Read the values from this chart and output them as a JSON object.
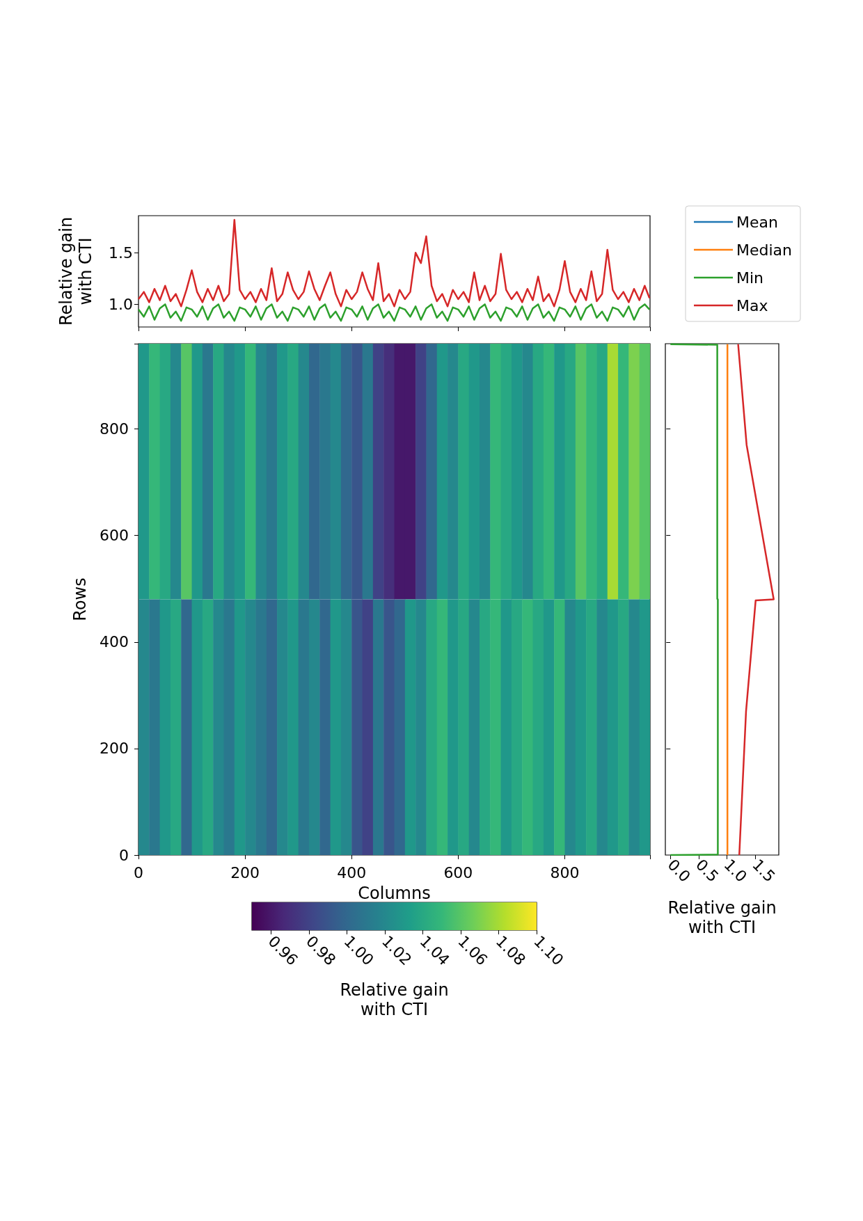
{
  "chart_data": [
    {
      "type": "line",
      "ylabel": "Relative gain\nwith CTI",
      "xlim": [
        0,
        960
      ],
      "xticks": [
        0,
        200,
        400,
        600,
        800
      ],
      "ylim": [
        0.78,
        1.86
      ],
      "yticks": [
        {
          "value": 1.0,
          "label": "1.0"
        },
        1.5
      ],
      "tick_labels": "y",
      "legend": "right",
      "x": [
        0,
        10,
        20,
        30,
        40,
        50,
        60,
        70,
        80,
        90,
        100,
        110,
        120,
        130,
        140,
        150,
        160,
        170,
        180,
        190,
        200,
        210,
        220,
        230,
        240,
        250,
        260,
        270,
        280,
        290,
        300,
        310,
        320,
        330,
        340,
        350,
        360,
        370,
        380,
        390,
        400,
        410,
        420,
        430,
        440,
        450,
        460,
        470,
        480,
        490,
        500,
        510,
        520,
        530,
        540,
        550,
        560,
        570,
        580,
        590,
        600,
        610,
        620,
        630,
        640,
        650,
        660,
        670,
        680,
        690,
        700,
        710,
        720,
        730,
        740,
        750,
        760,
        770,
        780,
        790,
        800,
        810,
        820,
        830,
        840,
        850,
        860,
        870,
        880,
        890,
        900,
        910,
        920,
        930,
        940,
        950,
        959
      ],
      "series": [
        {
          "name": "Mean",
          "color": "#1f77b4",
          "values": [
            null,
            null,
            null,
            null,
            null,
            null,
            null,
            null,
            null,
            null,
            null,
            null,
            null,
            null,
            null,
            null,
            null,
            null,
            null,
            null,
            null,
            null,
            null,
            null,
            null,
            null,
            null,
            null,
            null,
            null,
            null,
            null,
            null,
            null,
            null,
            null,
            null,
            null,
            null,
            null,
            null,
            null,
            null,
            null,
            null,
            null,
            null,
            null,
            null,
            null,
            null,
            null,
            null,
            null,
            null,
            null,
            null,
            null,
            null,
            null,
            null,
            null,
            null,
            null,
            null,
            null,
            null,
            null,
            null,
            null,
            null,
            null,
            null,
            null,
            null,
            null,
            null,
            null,
            null,
            null,
            null,
            null,
            null,
            null,
            null,
            null,
            null,
            null,
            null,
            null,
            null,
            null,
            null,
            null,
            null,
            null,
            null
          ]
        },
        {
          "name": "Median",
          "color": "#ff7f0e",
          "values": [
            null,
            null,
            null,
            null,
            null,
            null,
            null,
            null,
            null,
            null,
            null,
            null,
            null,
            null,
            null,
            null,
            null,
            null,
            null,
            null,
            null,
            null,
            null,
            null,
            null,
            null,
            null,
            null,
            null,
            null,
            null,
            null,
            null,
            null,
            null,
            null,
            null,
            null,
            null,
            null,
            null,
            null,
            null,
            null,
            null,
            null,
            null,
            null,
            null,
            null,
            null,
            null,
            null,
            null,
            null,
            null,
            null,
            null,
            null,
            null,
            null,
            null,
            null,
            null,
            null,
            null,
            null,
            null,
            null,
            null,
            null,
            null,
            null,
            null,
            null,
            null,
            null,
            null,
            null,
            null,
            null,
            null,
            null,
            null,
            null,
            null,
            null,
            null,
            null,
            null,
            null,
            null,
            null,
            null,
            null,
            null,
            null
          ]
        },
        {
          "name": "Min",
          "color": "#2ca02c",
          "values": [
            0.95,
            0.88,
            0.98,
            0.85,
            0.96,
            1.0,
            0.87,
            0.93,
            0.84,
            0.97,
            0.95,
            0.88,
            0.98,
            0.85,
            0.96,
            1.0,
            0.87,
            0.93,
            0.84,
            0.97,
            0.95,
            0.88,
            0.98,
            0.85,
            0.96,
            1.0,
            0.87,
            0.93,
            0.84,
            0.97,
            0.95,
            0.88,
            0.98,
            0.85,
            0.96,
            1.0,
            0.87,
            0.93,
            0.84,
            0.97,
            0.95,
            0.88,
            0.98,
            0.85,
            0.96,
            1.0,
            0.87,
            0.93,
            0.84,
            0.97,
            0.95,
            0.88,
            0.98,
            0.85,
            0.96,
            1.0,
            0.87,
            0.93,
            0.84,
            0.97,
            0.95,
            0.88,
            0.98,
            0.85,
            0.96,
            1.0,
            0.87,
            0.93,
            0.84,
            0.97,
            0.95,
            0.88,
            0.98,
            0.85,
            0.96,
            1.0,
            0.87,
            0.93,
            0.84,
            0.97,
            0.95,
            0.88,
            0.98,
            0.85,
            0.96,
            1.0,
            0.87,
            0.93,
            0.84,
            0.97,
            0.95,
            0.88,
            0.98,
            0.85,
            0.96,
            1.0,
            0.95
          ]
        },
        {
          "name": "Max",
          "color": "#d62728",
          "values": [
            1.05,
            1.12,
            1.02,
            1.15,
            1.04,
            1.18,
            1.03,
            1.1,
            0.98,
            1.14,
            1.33,
            1.12,
            1.02,
            1.15,
            1.04,
            1.18,
            1.03,
            1.1,
            1.82,
            1.14,
            1.05,
            1.12,
            1.02,
            1.15,
            1.04,
            1.35,
            1.03,
            1.1,
            1.31,
            1.14,
            1.05,
            1.12,
            1.32,
            1.15,
            1.04,
            1.18,
            1.31,
            1.1,
            0.98,
            1.14,
            1.05,
            1.12,
            1.31,
            1.15,
            1.04,
            1.4,
            1.03,
            1.1,
            0.98,
            1.14,
            1.05,
            1.12,
            1.5,
            1.4,
            1.66,
            1.18,
            1.03,
            1.1,
            0.98,
            1.14,
            1.05,
            1.12,
            1.02,
            1.31,
            1.04,
            1.18,
            1.03,
            1.1,
            1.49,
            1.14,
            1.05,
            1.12,
            1.02,
            1.15,
            1.04,
            1.27,
            1.03,
            1.1,
            0.98,
            1.14,
            1.42,
            1.12,
            1.02,
            1.15,
            1.04,
            1.32,
            1.03,
            1.1,
            1.53,
            1.14,
            1.05,
            1.12,
            1.02,
            1.15,
            1.04,
            1.18,
            1.06
          ]
        }
      ]
    },
    {
      "type": "heatmap",
      "xlabel": "Columns",
      "ylabel": "Rows",
      "xlim": [
        0,
        960
      ],
      "xticks": [
        0,
        200,
        400,
        600,
        800
      ],
      "ylim": [
        0,
        960
      ],
      "yticks": [
        0,
        200,
        400,
        600,
        800
      ],
      "clabel": "Relative gain\nwith CTI",
      "clim": [
        0.95,
        1.1
      ],
      "cticks": [
        0.96,
        0.98,
        {
          "value": 1.0,
          "label": "1.00"
        },
        1.02,
        1.04,
        1.06,
        1.08,
        {
          "value": 1.1,
          "label": "1.10"
        }
      ],
      "cells": [
        [
          1.03,
          1.05,
          1.04,
          1.02,
          1.06,
          1.03,
          1.01,
          1.04,
          1.02,
          1.03,
          1.05,
          1.02,
          1.01,
          1.03,
          1.04,
          1.02,
          1.0,
          1.01,
          1.02,
          1.0,
          0.99,
          1.01,
          0.98,
          0.97,
          0.96,
          0.96,
          0.98,
          1.0,
          1.03,
          1.02,
          1.04,
          1.03,
          1.02,
          1.05,
          1.04,
          1.03,
          1.02,
          1.04,
          1.05,
          1.03,
          1.04,
          1.06,
          1.05,
          1.04,
          1.08,
          1.05,
          1.07,
          1.06
        ],
        [
          1.02,
          1.01,
          1.03,
          1.04,
          1.0,
          1.03,
          1.04,
          1.02,
          1.01,
          1.03,
          1.02,
          1.01,
          1.0,
          1.02,
          1.03,
          1.01,
          1.02,
          1.0,
          1.03,
          1.02,
          0.99,
          0.98,
          1.01,
          0.99,
          1.0,
          1.03,
          1.02,
          1.04,
          1.05,
          1.03,
          1.04,
          1.02,
          1.04,
          1.05,
          1.03,
          1.04,
          1.05,
          1.04,
          1.03,
          1.05,
          1.02,
          1.03,
          1.04,
          1.02,
          1.03,
          1.04,
          1.02,
          1.03
        ]
      ]
    },
    {
      "type": "line",
      "orientation": "horizontal",
      "xlabel": "Relative gain\nwith CTI",
      "xlim": [
        -0.09,
        1.92
      ],
      "xticks": [
        {
          "value": 0,
          "label": "0.0"
        },
        0.5,
        {
          "value": 1,
          "label": "1.0"
        },
        1.5
      ],
      "ylim": [
        0,
        960
      ],
      "yticks": [
        200,
        400,
        600,
        800
      ],
      "tick_labels": "x",
      "series": [
        {
          "color": "#1f77b4"
        },
        {
          "color": "#2ca02c",
          "x": [
            0,
            1,
            480,
            481,
            958,
            959
          ],
          "values": [
            0,
            0.84,
            0.84,
            0.83,
            0.83,
            0
          ]
        },
        {
          "color": "#ff7f0e",
          "x": [
            0,
            959
          ],
          "values": [
            1.01,
            1.01
          ]
        },
        {
          "color": "#d62728",
          "x": [
            0,
            270,
            478,
            480,
            770,
            959
          ],
          "values": [
            1.22,
            1.34,
            1.51,
            1.83,
            1.35,
            1.2
          ]
        }
      ]
    }
  ]
}
